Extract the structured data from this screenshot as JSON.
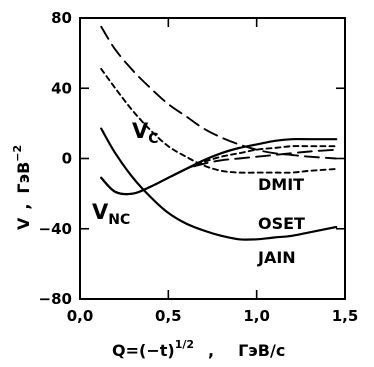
{
  "chart_data": {
    "type": "line",
    "x_axis": {
      "label_main": "Q=(−t)",
      "label_sup": "1/2",
      "label_sep": ",",
      "label_unit": "ГэВ/с",
      "range": [
        0,
        1.5
      ],
      "ticks": [
        0,
        0.5,
        1.0,
        1.5
      ],
      "tick_labels": [
        "0,0",
        "0,5",
        "1,0",
        "1,5"
      ]
    },
    "y_axis": {
      "label_main": "V",
      "label_sep": ",",
      "label_unit": "ГэВ",
      "label_sup": "−2",
      "range": [
        -80,
        80
      ],
      "ticks": [
        -80,
        -40,
        0,
        40,
        80
      ],
      "tick_labels": [
        "−80",
        "−40",
        "0",
        "40",
        "80"
      ]
    },
    "series": [
      {
        "name": "Vc DMIT",
        "style": "dashed",
        "x": [
          0.12,
          0.2,
          0.3,
          0.4,
          0.5,
          0.6,
          0.7,
          0.8,
          0.9,
          1.0,
          1.1,
          1.2,
          1.3,
          1.45
        ],
        "y": [
          75,
          62,
          50,
          40,
          31,
          24,
          17,
          12,
          8,
          5,
          3,
          2,
          1,
          0
        ]
      },
      {
        "name": "Vc OSET",
        "style": "dotted",
        "x": [
          0.12,
          0.2,
          0.3,
          0.4,
          0.5,
          0.6,
          0.7,
          0.8,
          0.9,
          1.0,
          1.1,
          1.2,
          1.3,
          1.45
        ],
        "y": [
          51,
          40,
          27,
          16,
          7,
          1,
          -4,
          -7,
          -8,
          -8,
          -8,
          -8,
          -7,
          -6
        ]
      },
      {
        "name": "Vc JAIN",
        "style": "solid",
        "x": [
          0.12,
          0.2,
          0.3,
          0.4,
          0.5,
          0.6,
          0.7,
          0.8,
          0.9,
          1.0,
          1.1,
          1.2,
          1.3,
          1.45
        ],
        "y": [
          17,
          3,
          -11,
          -22,
          -31,
          -37,
          -41,
          -44,
          -46,
          -46,
          -45,
          -44,
          -42,
          -39
        ]
      },
      {
        "name": "Vnc DMIT",
        "style": "dashed",
        "x": [
          0.12,
          0.2,
          0.3,
          0.4,
          0.5,
          0.6,
          0.7,
          0.8,
          0.9,
          1.0,
          1.1,
          1.2,
          1.3,
          1.45
        ],
        "y": [
          -11,
          -19,
          -20,
          -16,
          -11,
          -6,
          -3,
          -1,
          0,
          1,
          2,
          3,
          4,
          5
        ]
      },
      {
        "name": "Vnc OSET",
        "style": "dotted",
        "x": [
          0.12,
          0.2,
          0.3,
          0.4,
          0.5,
          0.6,
          0.7,
          0.8,
          0.9,
          1.0,
          1.1,
          1.2,
          1.3,
          1.45
        ],
        "y": [
          -11,
          -19,
          -20,
          -16,
          -11,
          -6,
          -2,
          1,
          3,
          5,
          6,
          7,
          7,
          7
        ]
      },
      {
        "name": "Vnc JAIN",
        "style": "solid",
        "x": [
          0.12,
          0.2,
          0.3,
          0.4,
          0.5,
          0.6,
          0.7,
          0.8,
          0.9,
          1.0,
          1.1,
          1.2,
          1.3,
          1.45
        ],
        "y": [
          -11,
          -19,
          -20,
          -16,
          -11,
          -6,
          -1,
          3,
          6,
          8,
          10,
          11,
          11,
          11
        ]
      }
    ],
    "annotations": [
      {
        "main": "V",
        "sub": "C"
      },
      {
        "main": "V",
        "sub": "NC"
      },
      {
        "main": "DMIT"
      },
      {
        "main": "OSET"
      },
      {
        "main": "JAIN"
      }
    ],
    "grid": false,
    "legend": "none"
  }
}
